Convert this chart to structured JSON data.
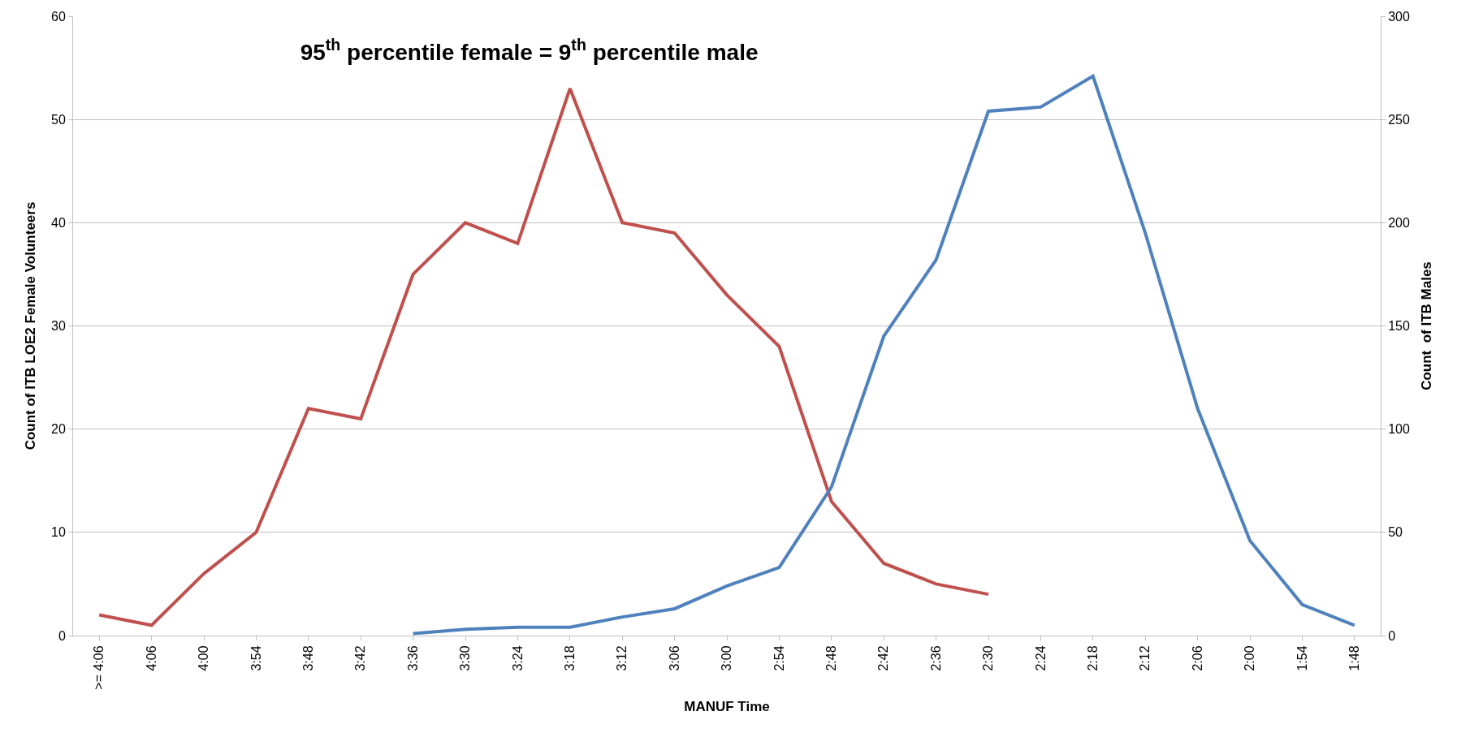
{
  "chart_data": {
    "type": "line",
    "title": "95$^{th}$ percentile female = 9$^{th}$ percentile male",
    "xlabel": "MANUF Time",
    "ylabel": "Count of ITB LOE2 Female Volunteers",
    "y2label": "Count  of ITB Males",
    "categories": [
      ">= 4:06",
      "4:06",
      "4:00",
      "3:54",
      "3:48",
      "3:42",
      "3:36",
      "3:30",
      "3:24",
      "3:18",
      "3:12",
      "3:06",
      "3:00",
      "2:54",
      "2:48",
      "2:42",
      "2:36",
      "2:30",
      "2:24",
      "2:18",
      "2:12",
      "2:06",
      "2:00",
      "1:54",
      "1:48"
    ],
    "series": [
      {
        "color": "#c0504d",
        "values": [
          2,
          1,
          6,
          10,
          22,
          21,
          35,
          40,
          38,
          53,
          40,
          39,
          33,
          28,
          13,
          7,
          5,
          4,
          null,
          null,
          null,
          null,
          null,
          null,
          null
        ]
      },
      {
        "color": "#4f81bd",
        "axis": "y2",
        "values": [
          null,
          null,
          null,
          null,
          null,
          null,
          1,
          3,
          4,
          4,
          9,
          13,
          24,
          33,
          72,
          145,
          182,
          254,
          256,
          271,
          195,
          110,
          46,
          15,
          5
        ]
      }
    ],
    "ylim": [
      0,
      60
    ],
    "yticks": [
      0,
      10,
      20,
      30,
      40,
      50,
      60
    ],
    "y2lim": [
      0,
      300
    ],
    "y2ticks": [
      0,
      50,
      100,
      150,
      200,
      250,
      300
    ],
    "grid": "y",
    "marker": "none",
    "line_style": "solid"
  }
}
